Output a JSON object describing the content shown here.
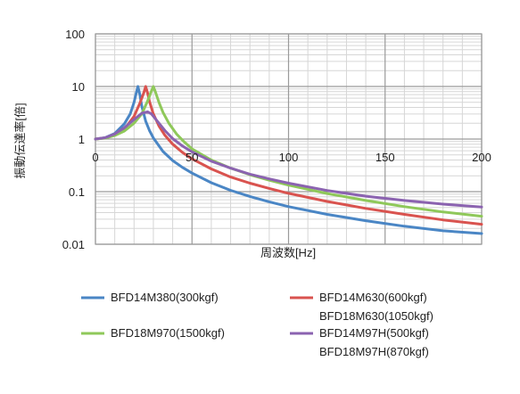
{
  "chart_data": {
    "type": "line",
    "title": "",
    "xlabel": "周波数[Hz]",
    "ylabel": "振動伝達率[倍]",
    "x_scale": "linear",
    "y_scale": "log",
    "xlim": [
      0,
      200
    ],
    "ylim": [
      0.01,
      100
    ],
    "x_ticks": [
      "0",
      "50",
      "100",
      "150",
      "200"
    ],
    "y_ticks": [
      "100",
      "10",
      "1",
      "0.1",
      "0.01"
    ],
    "grid": true,
    "legend_position": "bottom",
    "series": [
      {
        "name": "BFD14M380(300kgf)",
        "color": "#4a86c5",
        "x": [
          0,
          5,
          10,
          15,
          18,
          20,
          21,
          22,
          23,
          24,
          26,
          28,
          30,
          35,
          40,
          45,
          50,
          60,
          70,
          80,
          90,
          100,
          120,
          140,
          160,
          180,
          200
        ],
        "y": [
          1.0,
          1.06,
          1.28,
          1.96,
          3.0,
          5.0,
          7.2,
          10.0,
          7.0,
          4.2,
          2.2,
          1.45,
          1.05,
          0.58,
          0.39,
          0.29,
          0.225,
          0.148,
          0.106,
          0.081,
          0.064,
          0.052,
          0.037,
          0.028,
          0.022,
          0.018,
          0.016
        ]
      },
      {
        "name": "BFD14M630(600kgf)",
        "name2": "BFD18M630(1050kgf)",
        "color": "#d9534f",
        "x": [
          0,
          5,
          10,
          15,
          20,
          23,
          25,
          26,
          27,
          28,
          30,
          33,
          36,
          40,
          45,
          50,
          60,
          70,
          80,
          90,
          100,
          120,
          140,
          160,
          180,
          200
        ],
        "y": [
          1.0,
          1.05,
          1.2,
          1.55,
          2.7,
          4.8,
          7.5,
          10.0,
          7.5,
          5.2,
          3.0,
          1.75,
          1.18,
          0.8,
          0.56,
          0.42,
          0.27,
          0.19,
          0.145,
          0.115,
          0.093,
          0.065,
          0.048,
          0.037,
          0.029,
          0.024
        ]
      },
      {
        "name": "BFD18M970(1500kgf)",
        "color": "#8fc85a",
        "x": [
          0,
          5,
          10,
          15,
          20,
          24,
          27,
          29,
          30,
          31,
          33,
          35,
          38,
          42,
          46,
          50,
          60,
          70,
          80,
          90,
          100,
          120,
          140,
          160,
          180,
          200
        ],
        "y": [
          1.0,
          1.04,
          1.17,
          1.42,
          2.0,
          3.0,
          5.3,
          8.2,
          10.0,
          8.0,
          4.9,
          3.2,
          2.0,
          1.25,
          0.88,
          0.65,
          0.4,
          0.28,
          0.21,
          0.165,
          0.133,
          0.092,
          0.068,
          0.052,
          0.041,
          0.034
        ]
      },
      {
        "name": "BFD14M97H(500kgf)",
        "name2": "BFD18M97H(870kgf)",
        "color": "#8b63b0",
        "x": [
          0,
          5,
          10,
          15,
          20,
          24,
          27,
          29,
          32,
          36,
          40,
          45,
          50,
          60,
          70,
          80,
          90,
          100,
          120,
          140,
          160,
          180,
          200
        ],
        "y": [
          1.0,
          1.06,
          1.25,
          1.65,
          2.35,
          3.1,
          3.3,
          3.0,
          2.2,
          1.45,
          1.02,
          0.74,
          0.57,
          0.38,
          0.28,
          0.215,
          0.175,
          0.145,
          0.105,
          0.082,
          0.068,
          0.058,
          0.051
        ]
      }
    ]
  }
}
